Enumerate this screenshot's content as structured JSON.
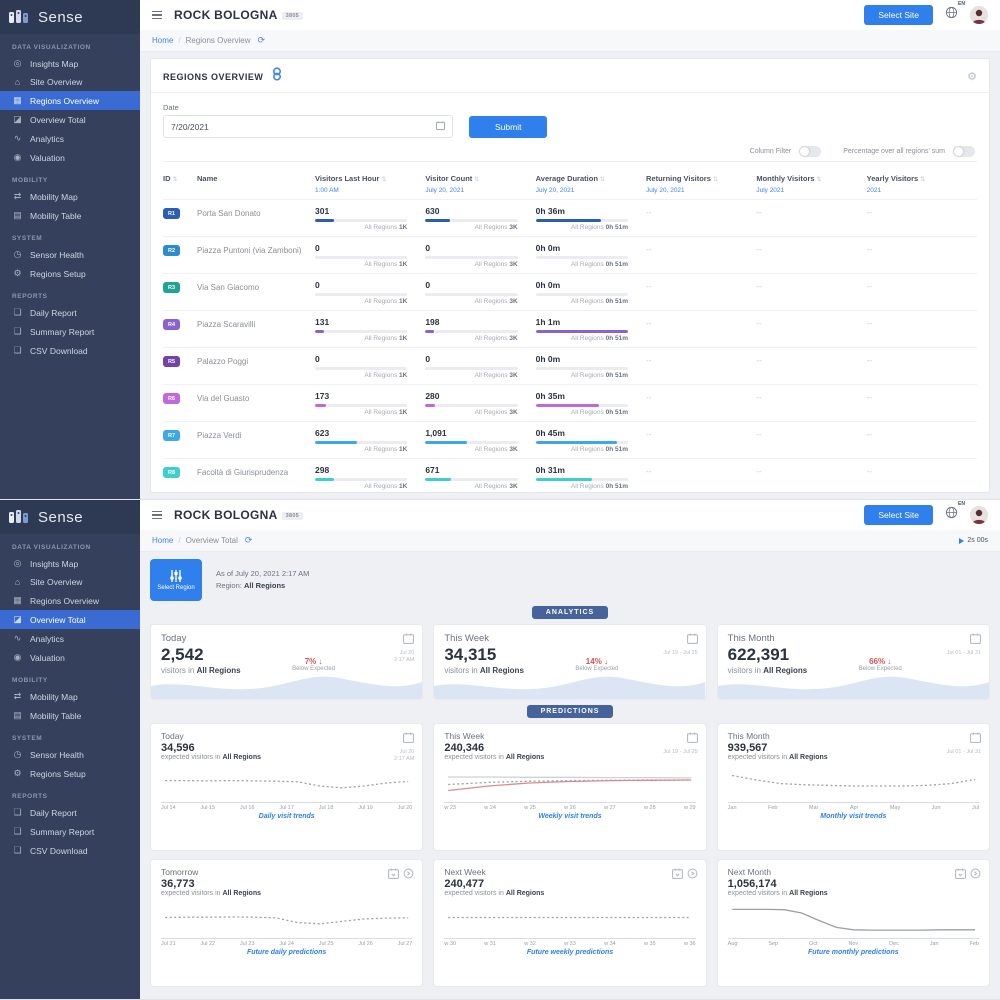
{
  "app": {
    "logo_text": "Sense",
    "title": "ROCK BOLOGNA",
    "title_badge": "3805",
    "select_site": "Select Site",
    "lang": "EN"
  },
  "sidebar": {
    "sections": [
      {
        "title": "DATA VISUALIZATION",
        "items": [
          {
            "label": "Insights Map",
            "icon": "map-pin-icon",
            "glyph": "◎"
          },
          {
            "label": "Site Overview",
            "icon": "home-icon",
            "glyph": "⌂"
          },
          {
            "label": "Regions Overview",
            "icon": "grid-icon",
            "glyph": "▦"
          },
          {
            "label": "Overview Total",
            "icon": "chart-bar-icon",
            "glyph": "◪"
          },
          {
            "label": "Analytics",
            "icon": "chart-line-icon",
            "glyph": "∿"
          },
          {
            "label": "Valuation",
            "icon": "target-icon",
            "glyph": "◉"
          }
        ]
      },
      {
        "title": "MOBILITY",
        "items": [
          {
            "label": "Mobility Map",
            "icon": "route-icon",
            "glyph": "⇄"
          },
          {
            "label": "Mobility Table",
            "icon": "table-icon",
            "glyph": "▤"
          }
        ]
      },
      {
        "title": "SYSTEM",
        "items": [
          {
            "label": "Sensor Health",
            "icon": "clock-icon",
            "glyph": "◷"
          },
          {
            "label": "Regions Setup",
            "icon": "gear-icon",
            "glyph": "⚙"
          }
        ]
      },
      {
        "title": "REPORTS",
        "items": [
          {
            "label": "Daily Report",
            "icon": "file-icon",
            "glyph": "❏"
          },
          {
            "label": "Summary Report",
            "icon": "file-icon",
            "glyph": "❏"
          },
          {
            "label": "CSV Download",
            "icon": "file-icon",
            "glyph": "❏"
          }
        ]
      }
    ]
  },
  "screen1": {
    "active_item": "Regions Overview",
    "breadcrumb": {
      "home": "Home",
      "current": "Regions Overview"
    },
    "panel_title": "REGIONS OVERVIEW",
    "form": {
      "date_label": "Date",
      "date_value": "7/20/2021",
      "submit_label": "Submit"
    },
    "toggles": [
      {
        "label": "Column Filter",
        "on": false
      },
      {
        "label": "Percentage over all regions' sum",
        "on": false
      }
    ],
    "table": {
      "columns": [
        {
          "label": "ID",
          "sub": "",
          "sortable": true
        },
        {
          "label": "Name",
          "sub": "",
          "sortable": false
        },
        {
          "label": "Visitors Last Hour",
          "sub": "1:00 AM",
          "sortable": true
        },
        {
          "label": "Visitor Count",
          "sub": "July 20, 2021",
          "sortable": true
        },
        {
          "label": "Average Duration",
          "sub": "July 20, 2021",
          "sortable": true
        },
        {
          "label": "Returning Visitors",
          "sub": "July 20, 2021",
          "sortable": true
        },
        {
          "label": "Monthly Visitors",
          "sub": "July 2021",
          "sortable": true
        },
        {
          "label": "Yearly Visitors",
          "sub": "2021",
          "sortable": true
        }
      ],
      "all_prefix": "All Regions",
      "all_last_hour": "1K",
      "all_count": "3K",
      "all_duration": "0h 51m",
      "rows": [
        {
          "id": "R1",
          "color": "#2a5db4",
          "name": "Porta San Donato",
          "last_hour": "301",
          "last_hour_pct": 21,
          "count": "630",
          "count_pct": 27,
          "duration": "0h 36m",
          "duration_pct": 71,
          "returning": "--",
          "monthly": "--",
          "yearly": "--"
        },
        {
          "id": "R2",
          "color": "#2f8ccc",
          "name": "Piazza Puntoni (via Zamboni)",
          "last_hour": "0",
          "last_hour_pct": 0,
          "count": "0",
          "count_pct": 0,
          "duration": "0h 0m",
          "duration_pct": 0,
          "returning": "--",
          "monthly": "--",
          "yearly": "--"
        },
        {
          "id": "R3",
          "color": "#1fa394",
          "name": "Via San Giacomo",
          "last_hour": "0",
          "last_hour_pct": 0,
          "count": "0",
          "count_pct": 0,
          "duration": "0h 0m",
          "duration_pct": 0,
          "returning": "--",
          "monthly": "--",
          "yearly": "--"
        },
        {
          "id": "R4",
          "color": "#8a63cf",
          "name": "Piazza Scaravilli",
          "last_hour": "131",
          "last_hour_pct": 10,
          "count": "198",
          "count_pct": 9,
          "duration": "1h 1m",
          "duration_pct": 100,
          "returning": "--",
          "monthly": "--",
          "yearly": "--"
        },
        {
          "id": "R5",
          "color": "#7244a8",
          "name": "Palazzo Poggi",
          "last_hour": "0",
          "last_hour_pct": 0,
          "count": "0",
          "count_pct": 0,
          "duration": "0h 0m",
          "duration_pct": 0,
          "returning": "--",
          "monthly": "--",
          "yearly": "--"
        },
        {
          "id": "R6",
          "color": "#c368d8",
          "name": "Via del Guasto",
          "last_hour": "173",
          "last_hour_pct": 12,
          "count": "280",
          "count_pct": 11,
          "duration": "0h 35m",
          "duration_pct": 69,
          "returning": "--",
          "monthly": "--",
          "yearly": "--"
        },
        {
          "id": "R7",
          "color": "#3da8e8",
          "name": "Piazza Verdi",
          "last_hour": "623",
          "last_hour_pct": 45,
          "count": "1,091",
          "count_pct": 45,
          "duration": "0h 45m",
          "duration_pct": 88,
          "returning": "--",
          "monthly": "--",
          "yearly": "--"
        },
        {
          "id": "R8",
          "color": "#3fcfca",
          "name": "Facoltà di Giurisprudenza",
          "last_hour": "298",
          "last_hour_pct": 21,
          "count": "671",
          "count_pct": 28,
          "duration": "0h 31m",
          "duration_pct": 61,
          "returning": "--",
          "monthly": "--",
          "yearly": "--"
        }
      ]
    }
  },
  "screen2": {
    "active_item": "Overview Total",
    "breadcrumb": {
      "home": "Home",
      "current": "Overview Total"
    },
    "timer": "2s 00s",
    "select_region_label": "Select Region",
    "as_of": "As of July 20, 2021 2:17 AM",
    "region_label": "Region:",
    "region_value": "All Regions",
    "section_analytics": "ANALYTICS",
    "section_predictions": "PREDICTIONS",
    "analytics_cards": [
      {
        "title": "Today",
        "value": "2,542",
        "sub_prefix": "visitors in",
        "region": "All Regions",
        "delta": "7%",
        "delta_arrow": "↓",
        "delta_note": "Below Expected",
        "date_line1": "Jul 20",
        "date_line2": "2:17 AM"
      },
      {
        "title": "This Week",
        "value": "34,315",
        "sub_prefix": "visitors in",
        "region": "All Regions",
        "delta": "14%",
        "delta_arrow": "↓",
        "delta_note": "Below Expected",
        "date_line1": "Jul 19 - Jul 25",
        "date_line2": ""
      },
      {
        "title": "This Month",
        "value": "622,391",
        "sub_prefix": "visitors in",
        "region": "All Regions",
        "delta": "66%",
        "delta_arrow": "↓",
        "delta_note": "Below Expected",
        "date_line1": "Jul 01 - Jul 31",
        "date_line2": ""
      }
    ],
    "prediction_cards": [
      {
        "title": "Today",
        "value": "34,596",
        "sub_prefix": "expected visitors in",
        "region": "All Regions",
        "footer": "Daily visit trends",
        "date_line1": "Jul 20",
        "date_line2": "2:17 AM",
        "icons": [
          "calendar-icon"
        ],
        "x_labels": [
          "Jul 14",
          "Jul 15",
          "Jul 16",
          "Jul 17",
          "Jul 18",
          "Jul 19",
          "Jul 20"
        ],
        "series": [
          {
            "dash": true,
            "color": "#9aa0a8",
            "points": [
              0.42,
              0.42,
              0.43,
              0.42,
              0.43,
              0.44,
              0.46,
              0.6,
              0.66,
              0.6,
              0.5,
              0.45
            ]
          }
        ]
      },
      {
        "title": "This Week",
        "value": "240,346",
        "sub_prefix": "expected visitors in",
        "region": "All Regions",
        "footer": "Weekly visit trends",
        "date_line1": "Jul 19 - Jul 25",
        "date_line2": "",
        "icons": [
          "calendar-icon"
        ],
        "x_labels": [
          "w 23",
          "w 24",
          "w 25",
          "w 26",
          "w 27",
          "w 28",
          "w 29"
        ],
        "series": [
          {
            "dash": false,
            "color": "#ccd1d8",
            "points": [
              0.3,
              0.3,
              0.31,
              0.31,
              0.32,
              0.32,
              0.33
            ]
          },
          {
            "dash": true,
            "color": "#9aa0a8",
            "points": [
              0.55,
              0.48,
              0.44,
              0.42,
              0.41,
              0.4,
              0.4
            ]
          },
          {
            "dash": false,
            "color": "#d98c8c",
            "points": [
              0.75,
              0.6,
              0.5,
              0.45,
              0.42,
              0.41,
              0.4
            ]
          }
        ]
      },
      {
        "title": "This Month",
        "value": "939,567",
        "sub_prefix": "expected visitors in",
        "region": "All Regions",
        "footer": "Monthly visit trends",
        "date_line1": "Jul 01 - Jul 31",
        "date_line2": "",
        "icons": [
          "calendar-icon"
        ],
        "x_labels": [
          "Jan",
          "Feb",
          "Mar",
          "Apr",
          "May",
          "Jun",
          "Jul"
        ],
        "series": [
          {
            "dash": true,
            "color": "#9aa0a8",
            "points": [
              0.25,
              0.4,
              0.52,
              0.56,
              0.58,
              0.6,
              0.6,
              0.6,
              0.58,
              0.52,
              0.38
            ]
          }
        ]
      },
      {
        "title": "Tomorrow",
        "value": "36,773",
        "sub_prefix": "expected visitors in",
        "region": "All Regions",
        "footer": "Future daily predictions",
        "date_line1": "",
        "date_line2": "",
        "icons": [
          "calendar-export-icon",
          "circle-more-icon"
        ],
        "x_labels": [
          "Jul 21",
          "Jul 22",
          "Jul 23",
          "Jul 24",
          "Jul 25",
          "Jul 26",
          "Jul 27"
        ],
        "series": [
          {
            "dash": true,
            "color": "#9aa0a8",
            "points": [
              0.45,
              0.44,
              0.44,
              0.43,
              0.44,
              0.46,
              0.62,
              0.66,
              0.58,
              0.5,
              0.47,
              0.46
            ]
          }
        ]
      },
      {
        "title": "Next Week",
        "value": "240,477",
        "sub_prefix": "expected visitors in",
        "region": "All Regions",
        "footer": "Future weekly predictions",
        "date_line1": "",
        "date_line2": "",
        "icons": [
          "calendar-export-icon",
          "circle-more-icon"
        ],
        "x_labels": [
          "w 30",
          "w 31",
          "w 32",
          "w 33",
          "w 34",
          "w 35",
          "w 36"
        ],
        "series": [
          {
            "dash": true,
            "color": "#9aa0a8",
            "points": [
              0.45,
              0.45,
              0.45,
              0.45,
              0.45,
              0.45,
              0.45
            ]
          }
        ]
      },
      {
        "title": "Next Month",
        "value": "1,056,174",
        "sub_prefix": "expected visitors in",
        "region": "All Regions",
        "footer": "Future monthly predictions",
        "date_line1": "",
        "date_line2": "",
        "icons": [
          "calendar-export-icon",
          "circle-more-icon"
        ],
        "x_labels": [
          "Aug",
          "Sep",
          "Oct",
          "Nov",
          "Dec",
          "Jan",
          "Feb"
        ],
        "series": [
          {
            "dash": false,
            "color": "#9aa0a8",
            "points": [
              0.18,
              0.18,
              0.18,
              0.19,
              0.3,
              0.55,
              0.78,
              0.86,
              0.87,
              0.87,
              0.87,
              0.87,
              0.86,
              0.86,
              0.86
            ]
          }
        ]
      }
    ]
  }
}
